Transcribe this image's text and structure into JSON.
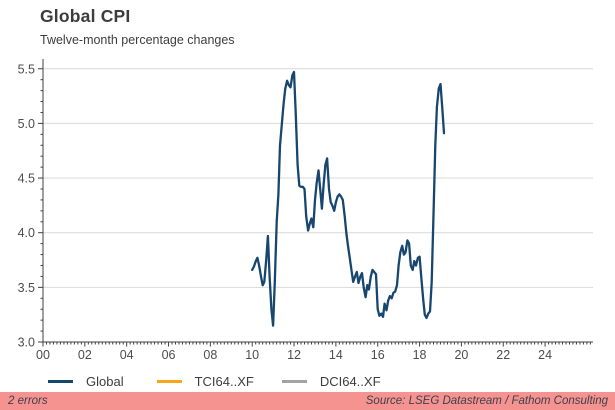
{
  "header": {
    "title": "Global CPI",
    "subtitle": "Twelve-month percentage changes"
  },
  "chart_data": {
    "type": "line",
    "title": "Global CPI",
    "subtitle": "Twelve-month percentage changes",
    "xlabel": "",
    "ylabel": "",
    "ylim": [
      3.0,
      5.5
    ],
    "y_ticks": [
      3.0,
      3.5,
      4.0,
      4.5,
      5.0,
      5.5
    ],
    "x_tick_years": [
      2000,
      2002,
      2004,
      2006,
      2008,
      2010,
      2012,
      2014,
      2016,
      2018,
      2020,
      2022,
      2024
    ],
    "x_tick_labels": [
      "00",
      "02",
      "04",
      "06",
      "08",
      "10",
      "12",
      "14",
      "16",
      "18",
      "20",
      "22",
      "24"
    ],
    "x_axis_end_year": 2026.3,
    "grid": "horizontal",
    "gridline_color": "#d9d9d9",
    "axis_color": "#404040",
    "tick_label_color": "#4d4d4d",
    "legend_position": "bottom",
    "series": [
      {
        "name": "Global",
        "color": "#17466f",
        "x": [
          2010.0,
          2010.08,
          2010.17,
          2010.25,
          2010.33,
          2010.42,
          2010.5,
          2010.58,
          2010.67,
          2010.75,
          2010.83,
          2010.92,
          2011.0,
          2011.08,
          2011.17,
          2011.25,
          2011.33,
          2011.42,
          2011.5,
          2011.58,
          2011.67,
          2011.75,
          2011.83,
          2011.92,
          2012.0,
          2012.08,
          2012.17,
          2012.25,
          2012.33,
          2012.42,
          2012.5,
          2012.58,
          2012.67,
          2012.75,
          2012.83,
          2012.92,
          2013.0,
          2013.08,
          2013.17,
          2013.25,
          2013.33,
          2013.42,
          2013.5,
          2013.58,
          2013.67,
          2013.75,
          2013.83,
          2013.92,
          2014.0,
          2014.08,
          2014.17,
          2014.25,
          2014.33,
          2014.42,
          2014.5,
          2014.58,
          2014.67,
          2014.75,
          2014.83,
          2014.92,
          2015.0,
          2015.08,
          2015.17,
          2015.25,
          2015.33,
          2015.42,
          2015.5,
          2015.58,
          2015.67,
          2015.75,
          2015.83,
          2015.92,
          2016.0,
          2016.08,
          2016.17,
          2016.25,
          2016.33,
          2016.42,
          2016.5,
          2016.58,
          2016.67,
          2016.75,
          2016.83,
          2016.92,
          2017.0,
          2017.08,
          2017.17,
          2017.25,
          2017.33,
          2017.42,
          2017.5,
          2017.58,
          2017.67,
          2017.75,
          2017.83,
          2017.92,
          2018.0,
          2018.08,
          2018.17,
          2018.25,
          2018.33,
          2018.42,
          2018.5,
          2018.58,
          2018.67,
          2018.75,
          2018.83,
          2018.92,
          2019.0,
          2019.08,
          2019.17
        ],
        "values": [
          3.66,
          3.69,
          3.74,
          3.77,
          3.7,
          3.6,
          3.52,
          3.55,
          3.75,
          3.97,
          3.6,
          3.3,
          3.15,
          3.55,
          4.1,
          4.35,
          4.8,
          5.0,
          5.18,
          5.32,
          5.39,
          5.35,
          5.33,
          5.44,
          5.47,
          5.1,
          4.62,
          4.43,
          4.42,
          4.42,
          4.4,
          4.15,
          4.02,
          4.08,
          4.13,
          4.05,
          4.3,
          4.45,
          4.57,
          4.4,
          4.22,
          4.45,
          4.62,
          4.68,
          4.4,
          4.28,
          4.25,
          4.2,
          4.28,
          4.33,
          4.35,
          4.33,
          4.3,
          4.15,
          4.0,
          3.88,
          3.76,
          3.65,
          3.55,
          3.6,
          3.64,
          3.54,
          3.6,
          3.63,
          3.5,
          3.41,
          3.52,
          3.48,
          3.6,
          3.66,
          3.64,
          3.62,
          3.3,
          3.24,
          3.26,
          3.23,
          3.35,
          3.29,
          3.38,
          3.42,
          3.4,
          3.45,
          3.46,
          3.52,
          3.7,
          3.82,
          3.88,
          3.8,
          3.82,
          3.93,
          3.9,
          3.7,
          3.66,
          3.74,
          3.7,
          3.77,
          3.78,
          3.6,
          3.4,
          3.25,
          3.22,
          3.26,
          3.28,
          3.55,
          4.2,
          4.8,
          5.15,
          5.32,
          5.36,
          5.15,
          4.91
        ]
      },
      {
        "name": "TCI64..XF",
        "color": "#f8a71b",
        "x": [],
        "values": []
      },
      {
        "name": "DCI64..XF",
        "color": "#a3a3a3",
        "x": [],
        "values": []
      }
    ]
  },
  "legend": {
    "items": [
      {
        "label": "Global",
        "color": "#17466f"
      },
      {
        "label": "TCI64..XF",
        "color": "#f8a71b"
      },
      {
        "label": "DCI64..XF",
        "color": "#a3a3a3"
      }
    ]
  },
  "footer": {
    "errors_text": "2 errors",
    "source_text": "Source: LSEG Datastream / Fathom Consulting",
    "bg_color": "#f4938f"
  }
}
